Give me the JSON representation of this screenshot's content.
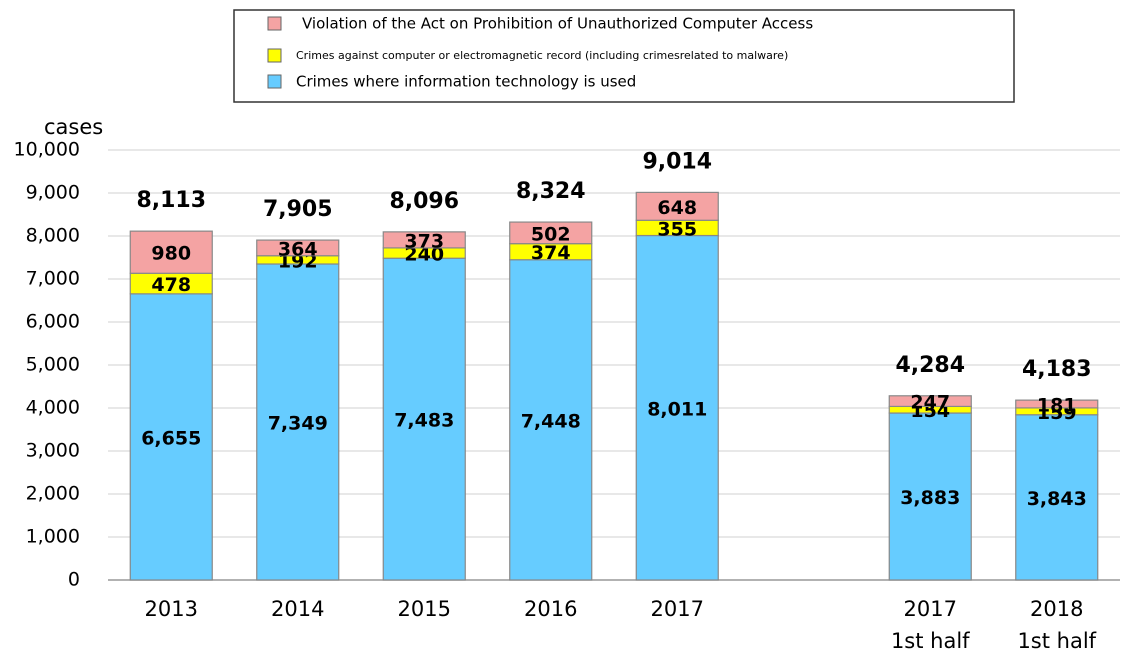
{
  "chart_data": {
    "type": "stacked_bar",
    "y_label": "cases",
    "categories": [
      "2013",
      "2014",
      "2015",
      "2016",
      "2017",
      null,
      [
        "2017",
        "1st half"
      ],
      [
        "2018",
        "1st half"
      ]
    ],
    "series": [
      {
        "name": "Crimes where information technology is used",
        "color": "#66ccff",
        "values": [
          6655,
          7349,
          7483,
          7448,
          8011,
          null,
          3883,
          3843
        ],
        "value_labels": [
          "6,655",
          "7,349",
          "7,483",
          "7,448",
          "8,011",
          null,
          "3,883",
          "3,843"
        ]
      },
      {
        "name": "Crimes against computer or electromagnetic record (including crimesrelated to malware)",
        "color": "#ffff00",
        "values": [
          478,
          192,
          240,
          374,
          355,
          null,
          154,
          159
        ]
      },
      {
        "name": "Violation of the Act on Prohibition of Unauthorized Computer Access",
        "color": "#f4a3a3",
        "values": [
          980,
          364,
          373,
          502,
          648,
          null,
          247,
          181
        ]
      }
    ],
    "totals": [
      8113,
      7905,
      8096,
      8324,
      9014,
      null,
      4284,
      4183
    ],
    "total_labels": [
      "8,113",
      "7,905",
      "8,096",
      "8,324",
      "9,014",
      null,
      "4,284",
      "4,183"
    ],
    "ylim": [
      0,
      10000
    ],
    "yticks": [
      0,
      {
        "value": 1000,
        "label": "1,000"
      },
      {
        "value": 2000,
        "label": "2,000"
      },
      {
        "value": 3000,
        "label": "3,000"
      },
      {
        "value": 4000,
        "label": "4,000"
      },
      {
        "value": 5000,
        "label": "5,000"
      },
      {
        "value": 6000,
        "label": "6,000"
      },
      {
        "value": 7000,
        "label": "7,000"
      },
      {
        "value": 8000,
        "label": "8,000"
      },
      {
        "value": 9000,
        "label": "9,000"
      },
      {
        "value": 10000,
        "label": "10,000"
      }
    ],
    "grid": true
  }
}
